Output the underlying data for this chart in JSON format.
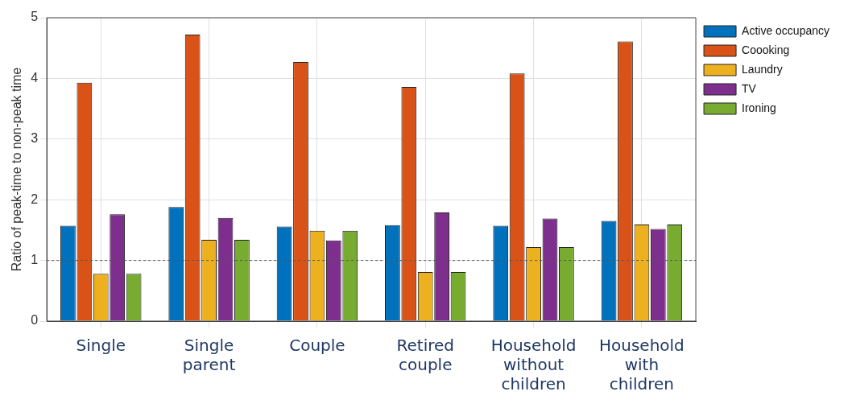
{
  "chart_data": {
    "type": "bar",
    "ylabel": "Ratio of peak-time to non-peak time",
    "categories": [
      "Single",
      "Single parent",
      "Couple",
      "Retired couple",
      "Household without children",
      "Household with children"
    ],
    "series": [
      {
        "name": "Active occupancy",
        "color": "#0072bd",
        "values": [
          1.57,
          1.88,
          1.56,
          1.58,
          1.57,
          1.65
        ]
      },
      {
        "name": "Coooking",
        "color": "#d95319",
        "values": [
          3.93,
          4.72,
          4.27,
          3.86,
          4.08,
          4.61
        ]
      },
      {
        "name": "Laundry",
        "color": "#edb120",
        "values": [
          0.78,
          1.34,
          1.49,
          0.81,
          1.22,
          1.59
        ]
      },
      {
        "name": "TV",
        "color": "#7e2f8e",
        "values": [
          1.76,
          1.7,
          1.33,
          1.79,
          1.69,
          1.52
        ]
      },
      {
        "name": "Ironing",
        "color": "#77ac30",
        "values": [
          0.78,
          1.34,
          1.49,
          0.81,
          1.22,
          1.59
        ]
      }
    ],
    "ylim": [
      0,
      5
    ],
    "yticks": [
      0,
      1,
      2,
      3,
      4,
      5
    ],
    "grid": true,
    "legend": "right",
    "ref_lines": [
      {
        "axis": "y",
        "value": 1,
        "line_style": "dashed",
        "color": "#555555"
      }
    ]
  }
}
